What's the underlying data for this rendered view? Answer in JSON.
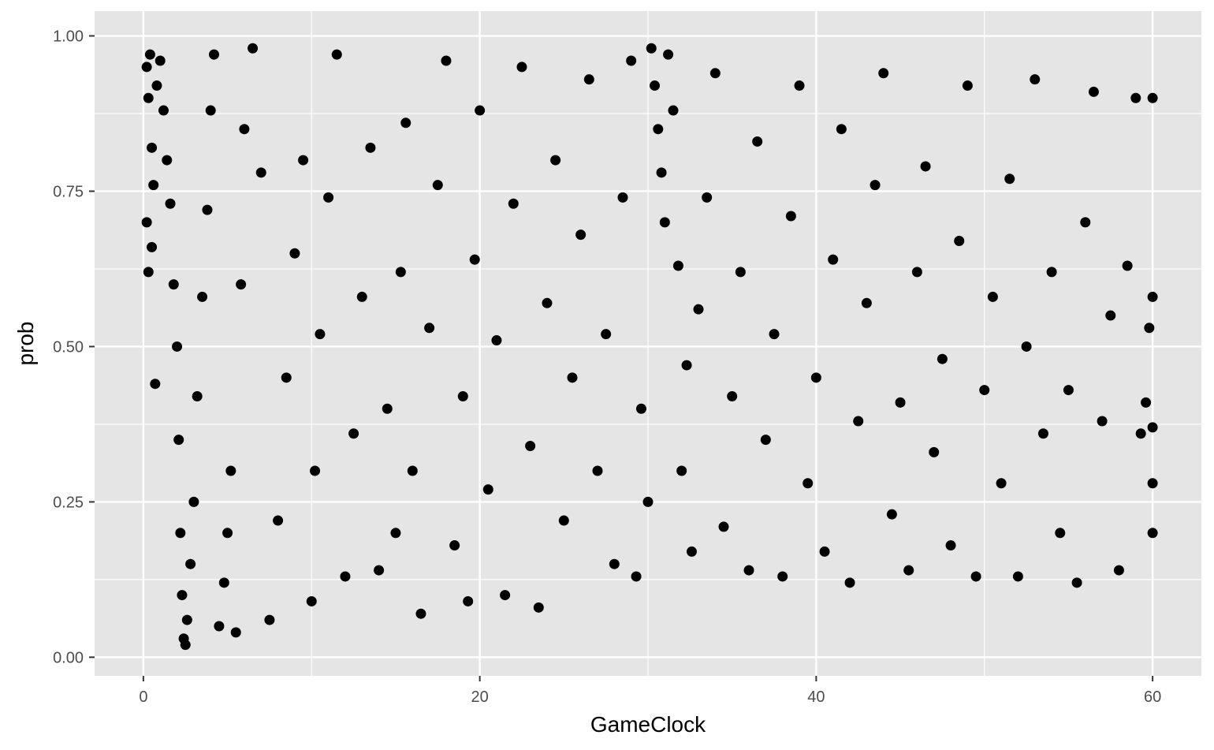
{
  "chart_data": {
    "type": "scatter",
    "title": "",
    "xlabel": "GameClock",
    "ylabel": "prob",
    "xlim": [
      -2.9,
      62.9
    ],
    "ylim": [
      -0.03,
      1.04
    ],
    "x_ticks": [
      {
        "value": 0,
        "label": "0"
      },
      {
        "value": 20,
        "label": "20"
      },
      {
        "value": 40,
        "label": "40"
      },
      {
        "value": 60,
        "label": "60"
      }
    ],
    "x_minor_ticks": [
      10,
      30,
      50
    ],
    "y_ticks": [
      {
        "value": 0,
        "label": "0.00"
      },
      {
        "value": 0.25,
        "label": "0.25"
      },
      {
        "value": 0.5,
        "label": "0.50"
      },
      {
        "value": 0.75,
        "label": "0.75"
      },
      {
        "value": 1.0,
        "label": "1.00"
      }
    ],
    "y_minor_ticks": [
      0.125,
      0.375,
      0.625,
      0.875
    ],
    "grid": true,
    "legend": "none",
    "colors": {
      "panel_background": "#e5e5e5",
      "grid_line": "#ffffff",
      "point": "#000000",
      "tick_label": "#4d4d4d",
      "axis_title": "#000000"
    },
    "series": [
      {
        "points": [
          [
            0.2,
            0.95
          ],
          [
            0.3,
            0.9
          ],
          [
            0.4,
            0.97
          ],
          [
            0.5,
            0.82
          ],
          [
            0.6,
            0.76
          ],
          [
            0.2,
            0.7
          ],
          [
            0.3,
            0.62
          ],
          [
            0.5,
            0.66
          ],
          [
            0.7,
            0.44
          ],
          [
            0.8,
            0.92
          ],
          [
            1.0,
            0.96
          ],
          [
            1.2,
            0.88
          ],
          [
            1.4,
            0.8
          ],
          [
            1.6,
            0.73
          ],
          [
            1.8,
            0.6
          ],
          [
            2.0,
            0.5
          ],
          [
            2.1,
            0.35
          ],
          [
            2.2,
            0.2
          ],
          [
            2.3,
            0.1
          ],
          [
            2.4,
            0.03
          ],
          [
            2.5,
            0.02
          ],
          [
            2.6,
            0.06
          ],
          [
            2.8,
            0.15
          ],
          [
            3.0,
            0.25
          ],
          [
            3.2,
            0.42
          ],
          [
            3.5,
            0.58
          ],
          [
            3.8,
            0.72
          ],
          [
            4.0,
            0.88
          ],
          [
            4.2,
            0.97
          ],
          [
            4.5,
            0.05
          ],
          [
            4.8,
            0.12
          ],
          [
            5.0,
            0.2
          ],
          [
            5.2,
            0.3
          ],
          [
            5.5,
            0.04
          ],
          [
            5.8,
            0.6
          ],
          [
            6.0,
            0.85
          ],
          [
            6.5,
            0.98
          ],
          [
            7.0,
            0.78
          ],
          [
            7.5,
            0.06
          ],
          [
            8.0,
            0.22
          ],
          [
            8.5,
            0.45
          ],
          [
            9.0,
            0.65
          ],
          [
            9.5,
            0.8
          ],
          [
            10.0,
            0.09
          ],
          [
            10.2,
            0.3
          ],
          [
            10.5,
            0.52
          ],
          [
            11.0,
            0.74
          ],
          [
            11.5,
            0.97
          ],
          [
            12.0,
            0.13
          ],
          [
            12.5,
            0.36
          ],
          [
            13.0,
            0.58
          ],
          [
            13.5,
            0.82
          ],
          [
            14.0,
            0.14
          ],
          [
            14.5,
            0.4
          ],
          [
            15.0,
            0.2
          ],
          [
            15.3,
            0.62
          ],
          [
            15.6,
            0.86
          ],
          [
            16.0,
            0.3
          ],
          [
            16.5,
            0.07
          ],
          [
            17.0,
            0.53
          ],
          [
            17.5,
            0.76
          ],
          [
            18.0,
            0.96
          ],
          [
            18.5,
            0.18
          ],
          [
            19.0,
            0.42
          ],
          [
            19.3,
            0.09
          ],
          [
            19.7,
            0.64
          ],
          [
            20.0,
            0.88
          ],
          [
            20.5,
            0.27
          ],
          [
            21.0,
            0.51
          ],
          [
            21.5,
            0.1
          ],
          [
            22.0,
            0.73
          ],
          [
            22.5,
            0.95
          ],
          [
            23.0,
            0.34
          ],
          [
            23.5,
            0.08
          ],
          [
            24.0,
            0.57
          ],
          [
            24.5,
            0.8
          ],
          [
            25.0,
            0.22
          ],
          [
            25.5,
            0.45
          ],
          [
            26.0,
            0.68
          ],
          [
            26.5,
            0.93
          ],
          [
            27.0,
            0.3
          ],
          [
            27.5,
            0.52
          ],
          [
            28.0,
            0.15
          ],
          [
            28.5,
            0.74
          ],
          [
            29.0,
            0.96
          ],
          [
            29.3,
            0.13
          ],
          [
            29.6,
            0.4
          ],
          [
            30.0,
            0.25
          ],
          [
            30.2,
            0.98
          ],
          [
            30.4,
            0.92
          ],
          [
            30.6,
            0.85
          ],
          [
            30.8,
            0.78
          ],
          [
            31.0,
            0.7
          ],
          [
            31.2,
            0.97
          ],
          [
            31.5,
            0.88
          ],
          [
            31.8,
            0.63
          ],
          [
            32.0,
            0.3
          ],
          [
            32.3,
            0.47
          ],
          [
            32.6,
            0.17
          ],
          [
            33.0,
            0.56
          ],
          [
            33.5,
            0.74
          ],
          [
            34.0,
            0.94
          ],
          [
            34.5,
            0.21
          ],
          [
            35.0,
            0.42
          ],
          [
            35.5,
            0.62
          ],
          [
            36.0,
            0.14
          ],
          [
            36.5,
            0.83
          ],
          [
            37.0,
            0.35
          ],
          [
            37.5,
            0.52
          ],
          [
            38.0,
            0.13
          ],
          [
            38.5,
            0.71
          ],
          [
            39.0,
            0.92
          ],
          [
            39.5,
            0.28
          ],
          [
            40.0,
            0.45
          ],
          [
            40.5,
            0.17
          ],
          [
            41.0,
            0.64
          ],
          [
            41.5,
            0.85
          ],
          [
            42.0,
            0.12
          ],
          [
            42.5,
            0.38
          ],
          [
            43.0,
            0.57
          ],
          [
            43.5,
            0.76
          ],
          [
            44.0,
            0.94
          ],
          [
            44.5,
            0.23
          ],
          [
            45.0,
            0.41
          ],
          [
            45.5,
            0.14
          ],
          [
            46.0,
            0.62
          ],
          [
            46.5,
            0.79
          ],
          [
            47.0,
            0.33
          ],
          [
            47.5,
            0.48
          ],
          [
            48.0,
            0.18
          ],
          [
            48.5,
            0.67
          ],
          [
            49.0,
            0.92
          ],
          [
            49.5,
            0.13
          ],
          [
            50.0,
            0.43
          ],
          [
            50.5,
            0.58
          ],
          [
            51.0,
            0.28
          ],
          [
            51.5,
            0.77
          ],
          [
            52.0,
            0.13
          ],
          [
            52.5,
            0.5
          ],
          [
            53.0,
            0.93
          ],
          [
            53.5,
            0.36
          ],
          [
            54.0,
            0.62
          ],
          [
            54.5,
            0.2
          ],
          [
            55.0,
            0.43
          ],
          [
            55.5,
            0.12
          ],
          [
            56.0,
            0.7
          ],
          [
            56.5,
            0.91
          ],
          [
            57.0,
            0.38
          ],
          [
            57.5,
            0.55
          ],
          [
            58.0,
            0.14
          ],
          [
            58.5,
            0.63
          ],
          [
            59.0,
            0.9
          ],
          [
            59.3,
            0.36
          ],
          [
            59.6,
            0.41
          ],
          [
            59.8,
            0.53
          ],
          [
            60.0,
            0.9
          ],
          [
            60.0,
            0.58
          ],
          [
            60.0,
            0.37
          ],
          [
            60.0,
            0.28
          ],
          [
            60.0,
            0.2
          ]
        ]
      }
    ]
  }
}
